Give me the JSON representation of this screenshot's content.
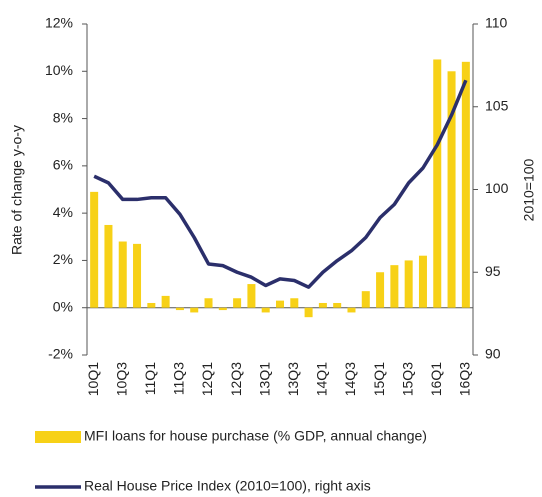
{
  "chart_data": {
    "type": "bar",
    "y_label": "Rate of change y-o-y",
    "y2_label": "2010=100",
    "categories": [
      "10Q1",
      null,
      "10Q3",
      null,
      "11Q1",
      null,
      "11Q3",
      null,
      "12Q1",
      null,
      "12Q3",
      null,
      "13Q1",
      null,
      "13Q3",
      null,
      "14Q1",
      null,
      "14Q3",
      null,
      "15Q1",
      null,
      "15Q3",
      null,
      "16Q1",
      null,
      "16Q3"
    ],
    "series": [
      {
        "name": "MFI loans for house purchase (% GDP, annual change)",
        "color": "#f7d117",
        "type": "bar",
        "values": [
          4.9,
          3.5,
          2.8,
          2.7,
          0.2,
          0.5,
          -0.1,
          -0.2,
          0.4,
          -0.1,
          0.4,
          1.0,
          -0.2,
          0.3,
          0.4,
          -0.4,
          0.2,
          0.2,
          -0.2,
          0.7,
          1.5,
          1.8,
          2.0,
          2.2,
          10.5,
          10.0,
          10.4
        ]
      },
      {
        "name": "Real House Price Index (2010=100), right axis",
        "color": "#2b2f6b",
        "type": "line",
        "axis": "y2",
        "values": [
          100.8,
          100.4,
          99.4,
          99.4,
          99.5,
          99.5,
          98.5,
          97.1,
          95.5,
          95.4,
          95.0,
          94.7,
          94.2,
          94.6,
          94.5,
          94.1,
          95.0,
          95.7,
          96.3,
          97.1,
          98.3,
          99.1,
          100.4,
          101.3,
          102.7,
          104.5,
          106.6
        ]
      }
    ],
    "ylim": [
      -2,
      12
    ],
    "yticks": [
      {
        "value": -2,
        "label": "-2%"
      },
      {
        "value": 0,
        "label": "0%"
      },
      {
        "value": 2,
        "label": "2%"
      },
      {
        "value": 4,
        "label": "4%"
      },
      {
        "value": 6,
        "label": "6%"
      },
      {
        "value": 8,
        "label": "8%"
      },
      {
        "value": 10,
        "label": "10%"
      },
      {
        "value": 12,
        "label": "12%"
      }
    ],
    "y2lim": [
      90,
      110
    ],
    "y2ticks": [
      90,
      95,
      100,
      105,
      110
    ],
    "grid": false,
    "legend": "bottom"
  }
}
